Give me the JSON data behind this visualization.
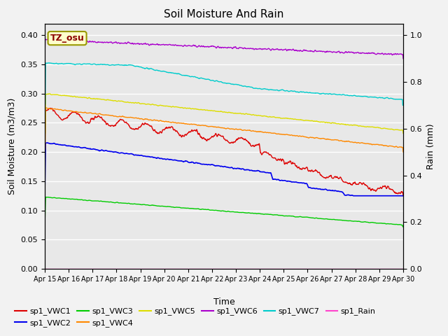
{
  "title": "Soil Moisture And Rain",
  "xlabel": "Time",
  "ylabel_left": "Soil Moisture (m3/m3)",
  "ylabel_right": "Rain (mm)",
  "annotation": "TZ_osu",
  "ylim_left": [
    0.0,
    0.42
  ],
  "ylim_right": [
    0.0,
    1.05
  ],
  "xtick_labels": [
    "Apr 15",
    "Apr 16",
    "Apr 17",
    "Apr 18",
    "Apr 19",
    "Apr 20",
    "Apr 21",
    "Apr 22",
    "Apr 23",
    "Apr 24",
    "Apr 25",
    "Apr 26",
    "Apr 27",
    "Apr 28",
    "Apr 29",
    "Apr 30"
  ],
  "background_color": "#e8e8e8",
  "fig_background": "#f2f2f2",
  "series_colors": {
    "sp1_VWC1": "#dd0000",
    "sp1_VWC2": "#0000ee",
    "sp1_VWC3": "#00cc00",
    "sp1_VWC4": "#ff8800",
    "sp1_VWC5": "#dddd00",
    "sp1_VWC6": "#aa00cc",
    "sp1_VWC7": "#00cccc",
    "sp1_Rain": "#ff44cc"
  },
  "n_points": 900
}
